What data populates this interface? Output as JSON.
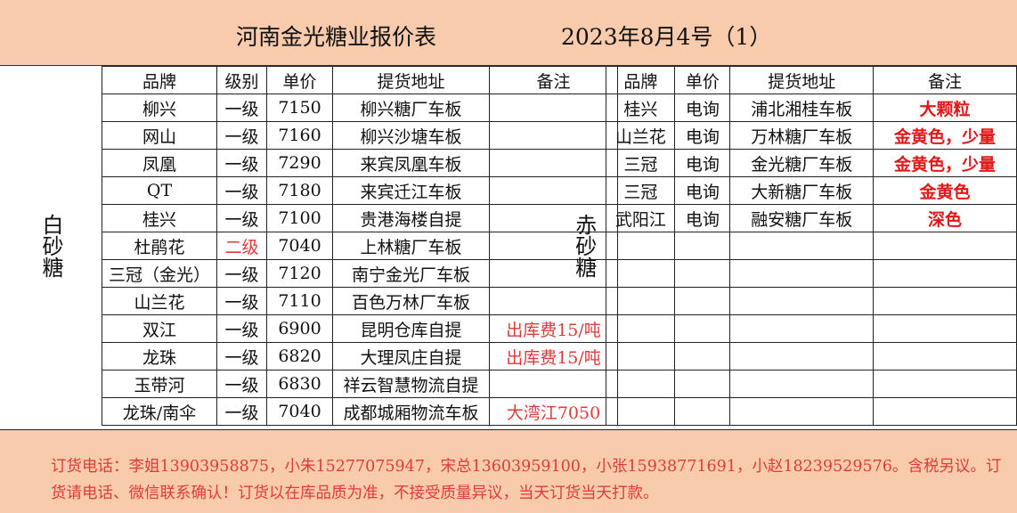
{
  "header": {
    "title": "河南金光糖业报价表",
    "date": "2023年8月4号（1）"
  },
  "white_sugar": {
    "category": "白砂糖",
    "columns": [
      "品牌",
      "级别",
      "单价",
      "提货地址",
      "备注"
    ],
    "rows": [
      {
        "brand": "柳兴",
        "grade": "一级",
        "price": "7150",
        "address": "柳兴糖厂车板",
        "note": ""
      },
      {
        "brand": "网山",
        "grade": "一级",
        "price": "7160",
        "address": "柳兴沙塘车板",
        "note": ""
      },
      {
        "brand": "凤凰",
        "grade": "一级",
        "price": "7290",
        "address": "来宾凤凰车板",
        "note": ""
      },
      {
        "brand": "QT",
        "grade": "一级",
        "price": "7180",
        "address": "来宾迁江车板",
        "note": ""
      },
      {
        "brand": "桂兴",
        "grade": "一级",
        "price": "7100",
        "address": "贵港海楼自提",
        "note": ""
      },
      {
        "brand": "杜鹃花",
        "grade": "二级",
        "price": "7040",
        "address": "上林糖厂车板",
        "note": "",
        "grade_red": true
      },
      {
        "brand": "三冠（金光）",
        "grade": "一级",
        "price": "7120",
        "address": "南宁金光厂车板",
        "note": ""
      },
      {
        "brand": "山兰花",
        "grade": "一级",
        "price": "7110",
        "address": "百色万林厂车板",
        "note": ""
      },
      {
        "brand": "双江",
        "grade": "一级",
        "price": "6900",
        "address": "昆明仓库自提",
        "note": "出库费15/吨"
      },
      {
        "brand": "龙珠",
        "grade": "一级",
        "price": "6820",
        "address": "大理凤庄自提",
        "note": "出库费15/吨"
      },
      {
        "brand": "玉带河",
        "grade": "一级",
        "price": "6830",
        "address": "祥云智慧物流自提",
        "note": ""
      },
      {
        "brand": "龙珠/南伞",
        "grade": "一级",
        "price": "7040",
        "address": "成都城厢物流车板",
        "note": "大湾江7050"
      }
    ]
  },
  "red_sugar": {
    "category": "赤砂糖",
    "columns": [
      "品牌",
      "单价",
      "提货地址",
      "备注"
    ],
    "rows": [
      {
        "brand": "桂兴",
        "price": "电询",
        "address": "浦北湘桂车板",
        "note": "大颗粒"
      },
      {
        "brand": "山兰花",
        "price": "电询",
        "address": "万林糖厂车板",
        "note": "金黄色，少量"
      },
      {
        "brand": "三冠",
        "price": "电询",
        "address": "金光糖厂车板",
        "note": "金黄色，少量"
      },
      {
        "brand": "三冠",
        "price": "电询",
        "address": "大新糖厂车板",
        "note": "金黄色"
      },
      {
        "brand": "武阳江",
        "price": "电询",
        "address": "融安糖厂车板",
        "note": "深色"
      }
    ],
    "empty_rows": 7
  },
  "footer": {
    "text": "订货电话：李姐13903958875，小朱15277075947，宋总13603959100，小张15938771691，小赵18239529576。含税另议。订货请电话、微信联系确认！订货以在库品质为准，不接受质量异议，当天订货当天打款。"
  },
  "colors": {
    "band": "#f8cbad",
    "red_text": "#e03a3a"
  }
}
